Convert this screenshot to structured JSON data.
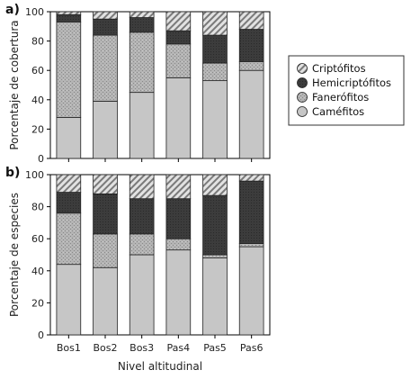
{
  "chart_data": [
    {
      "type": "bar",
      "stacked": true,
      "panel_label": "a)",
      "ylabel": "Porcentaje de cobertura",
      "xlabel": "",
      "categories": [
        "Bos1",
        "Bos2",
        "Bos3",
        "Pas4",
        "Pas5",
        "Pas6"
      ],
      "ylim": [
        0,
        100
      ],
      "yticks": [
        0,
        20,
        40,
        60,
        80,
        100
      ],
      "series": [
        {
          "name": "Caméfitos",
          "values": [
            28,
            39,
            45,
            55,
            53,
            60
          ]
        },
        {
          "name": "Fanerófitos",
          "values": [
            65,
            45,
            41,
            23,
            12,
            6
          ]
        },
        {
          "name": "Hemicriptófitos",
          "values": [
            5,
            11,
            10,
            9,
            19,
            22
          ]
        },
        {
          "name": "Criptófitos",
          "values": [
            2,
            5,
            4,
            13,
            16,
            12
          ]
        }
      ]
    },
    {
      "type": "bar",
      "stacked": true,
      "panel_label": "b)",
      "ylabel": "Porcentaje de especies",
      "xlabel": "Nivel altitudinal",
      "categories": [
        "Bos1",
        "Bos2",
        "Bos3",
        "Pas4",
        "Pas5",
        "Pas6"
      ],
      "ylim": [
        0,
        100
      ],
      "yticks": [
        0,
        20,
        40,
        60,
        80,
        100
      ],
      "series": [
        {
          "name": "Caméfitos",
          "values": [
            44,
            42,
            50,
            53,
            48,
            55
          ]
        },
        {
          "name": "Fanerófitos",
          "values": [
            32,
            21,
            13,
            7,
            2,
            2
          ]
        },
        {
          "name": "Hemicriptófitos",
          "values": [
            13,
            25,
            22,
            25,
            37,
            39
          ]
        },
        {
          "name": "Criptófitos",
          "values": [
            11,
            12,
            15,
            15,
            13,
            4
          ]
        }
      ]
    }
  ],
  "legend": {
    "placement": "right",
    "order": [
      "Criptófitos",
      "Hemicriptófitos",
      "Fanerófitos",
      "Caméfitos"
    ]
  },
  "series_colors": {
    "Caméfitos": "#c8c8c8",
    "Fanerófitos": "#a8a8a8",
    "Hemicriptófitos": "#3a3a3a",
    "Criptófitos": "#d8d8d8"
  }
}
